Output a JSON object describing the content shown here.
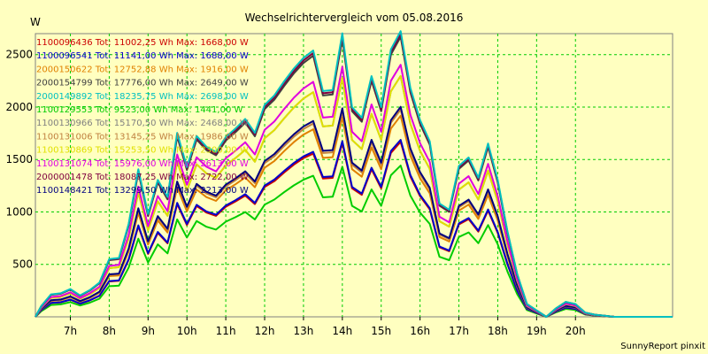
{
  "chart_data": {
    "type": "line",
    "title": "Wechselrichtervergleich vom 05.08.2016",
    "ylabel": "W",
    "xlabel": "",
    "footer": "SunnyReport pinxit",
    "xlim": [
      6.1,
      22.5
    ],
    "ylim": [
      0,
      2700
    ],
    "x_ticks": [
      7,
      8,
      9,
      10,
      11,
      12,
      13,
      14,
      15,
      16,
      17,
      18,
      19,
      20
    ],
    "x_tick_labels": [
      "7h",
      "8h",
      "9h",
      "10h",
      "11h",
      "12h",
      "13h",
      "14h",
      "15h",
      "16h",
      "17h",
      "18h",
      "19h",
      "20h"
    ],
    "y_ticks": [
      500,
      1000,
      1500,
      2000,
      2500
    ],
    "y_tick_labels": [
      "500",
      "1000",
      "1500",
      "2000",
      "2500"
    ],
    "grid": true,
    "legend_position": "top-left",
    "x": [
      6.1,
      6.25,
      6.5,
      6.75,
      7.0,
      7.25,
      7.5,
      7.75,
      8.0,
      8.25,
      8.5,
      8.75,
      9.0,
      9.25,
      9.5,
      9.75,
      10.0,
      10.25,
      10.5,
      10.75,
      11.0,
      11.25,
      11.5,
      11.75,
      12.0,
      12.25,
      12.5,
      12.75,
      13.0,
      13.25,
      13.5,
      13.75,
      14.0,
      14.25,
      14.5,
      14.75,
      15.0,
      15.25,
      15.5,
      15.75,
      16.0,
      16.25,
      16.5,
      16.75,
      17.0,
      17.25,
      17.5,
      17.75,
      18.0,
      18.25,
      18.5,
      18.75,
      19.0,
      19.25,
      19.5,
      19.75,
      20.0,
      20.25,
      20.5,
      20.75,
      21.0,
      21.5,
      22.0,
      22.5
    ],
    "reference": {
      "name": "2000154799",
      "values": [
        0,
        100,
        210,
        220,
        260,
        200,
        250,
        320,
        540,
        550,
        870,
        1380,
        960,
        1280,
        1120,
        1720,
        1400,
        1690,
        1590,
        1540,
        1680,
        1760,
        1850,
        1720,
        1980,
        2070,
        2200,
        2320,
        2420,
        2490,
        2110,
        2120,
        2650,
        1960,
        1860,
        2250,
        1960,
        2500,
        2670,
        2140,
        1840,
        1640,
        1060,
        1000,
        1410,
        1490,
        1300,
        1620,
        1280,
        800,
        400,
        120,
        60,
        0,
        80,
        140,
        120,
        40,
        20,
        10,
        0,
        0,
        0,
        0
      ]
    },
    "series": [
      {
        "name": "1100096436",
        "legend": "1100096436 Tot: 11002,25 Wh Max: 1668,00 W",
        "color": "#cc0000",
        "scale": 0.625
      },
      {
        "name": "1100096541",
        "legend": "1100096541 Tot: 11141,00 Wh Max: 1688,00 W",
        "color": "#0000cc",
        "scale": 0.632
      },
      {
        "name": "2000150622",
        "legend": "2000150622 Tot: 12752,88 Wh Max: 1916,00 W",
        "color": "#e08000",
        "scale": 0.718
      },
      {
        "name": "2000154799",
        "legend": "2000154799 Tot: 17776,00 Wh Max: 2649,00 W",
        "color": "#404040",
        "scale": 1.0
      },
      {
        "name": "2000149892",
        "legend": "2000149892 Tot: 18235,75 Wh Max: 2698,00 W",
        "color": "#00c0c0",
        "scale": 1.02
      },
      {
        "name": "1100129553",
        "legend": "1100129553 Tot: 9523,00 Wh Max: 1441,00 W",
        "color": "#00cc00",
        "scale": 0.54
      },
      {
        "name": "1100130966",
        "legend": "1100130966 Tot: 15170,50 Wh Max: 2468,00 W",
        "color": "#808080",
        "scale": 0.86
      },
      {
        "name": "1100131006",
        "legend": "1100131006 Tot: 13145,25 Wh Max: 1986,00 W",
        "color": "#c08040",
        "scale": 0.74
      },
      {
        "name": "1100130869",
        "legend": "1100130869 Tot: 15253,50 Wh Max: 2300,00 W",
        "color": "#e0e000",
        "scale": 0.86
      },
      {
        "name": "1100131074",
        "legend": "1100131074 Tot: 15976,00 Wh Max: 2613,00 W",
        "color": "#e000e0",
        "scale": 0.9
      },
      {
        "name": "2000001478",
        "legend": "2000001478 Tot: 18087,25 Wh Max: 2722,00 W",
        "color": "#800040",
        "scale": 1.01
      },
      {
        "name": "1100148421",
        "legend": "1100148421 Tot: 13299,50 Wh Max: 2213,00 W",
        "color": "#000080",
        "scale": 0.75
      }
    ]
  }
}
